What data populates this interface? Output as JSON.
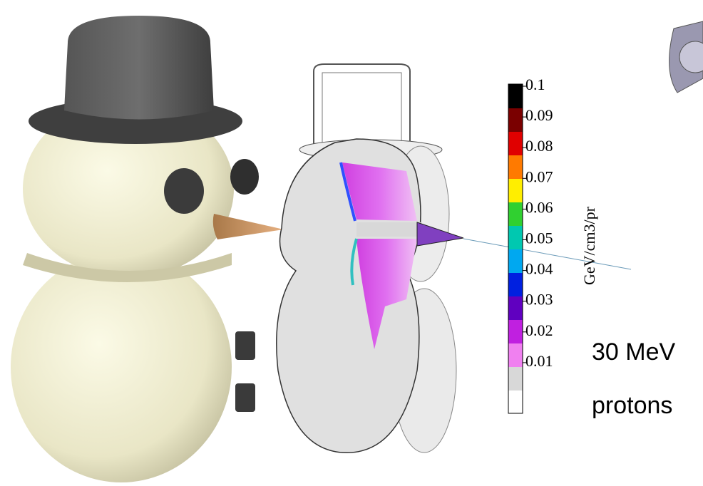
{
  "colorbar": {
    "label": "GeV/cm3/pr",
    "ticks": [
      0.1,
      0.09,
      0.08,
      0.07,
      0.06,
      0.05,
      0.04,
      0.03,
      0.02,
      0.01
    ]
  },
  "annotation": {
    "lines": [
      "30 MeV",
      "protons"
    ]
  }
}
